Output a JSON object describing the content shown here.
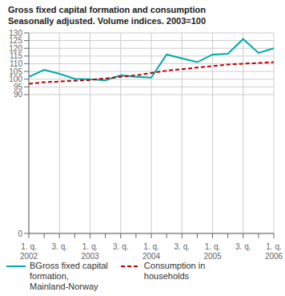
{
  "chart_data": {
    "type": "line",
    "title": "Gross fixed capital formation and consumption",
    "subtitle": "Seasonally adjusted. Volume indices. 2003=100",
    "categories": [
      "1. q.\n2002",
      null,
      "3. q.",
      null,
      "1. q.\n2003",
      null,
      "3. q.",
      null,
      "1. q.\n2004",
      null,
      "3. q.",
      null,
      "1. q.\n2005",
      null,
      "3. q.",
      null,
      "1. q.\n2006"
    ],
    "series": [
      {
        "name": "BGross fixed capital\nformation,\nMainland-Norway",
        "color": "#00AAAA",
        "line_style": "solid",
        "values": [
          101.5,
          106.0,
          103.5,
          100.2,
          100.0,
          99.2,
          102.5,
          101.5,
          101.0,
          116.0,
          113.5,
          111.0,
          116.0,
          116.5,
          126.0,
          117.0,
          120.0
        ]
      },
      {
        "name": "Consumption in\nhouseholds",
        "color": "#BB0000",
        "line_style": "dashed",
        "values": [
          97.0,
          98.0,
          98.5,
          99.0,
          99.5,
          100.5,
          101.5,
          102.5,
          104.0,
          105.5,
          106.5,
          107.5,
          108.5,
          109.5,
          110.0,
          110.5,
          111.0
        ]
      }
    ],
    "ylim": [
      0,
      130
    ],
    "yticks": [
      0,
      90,
      95,
      100,
      105,
      110,
      115,
      120,
      125,
      130
    ],
    "grid": true,
    "legend": "lower left"
  }
}
